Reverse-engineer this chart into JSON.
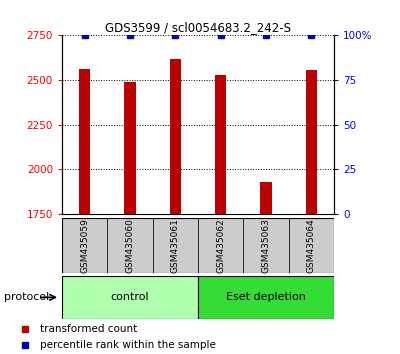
{
  "title": "GDS3599 / scl0054683.2_242-S",
  "samples": [
    "GSM435059",
    "GSM435060",
    "GSM435061",
    "GSM435062",
    "GSM435063",
    "GSM435064"
  ],
  "red_values": [
    2560,
    2490,
    2620,
    2530,
    1930,
    2555
  ],
  "blue_values": [
    100,
    100,
    100,
    100,
    100,
    100
  ],
  "ylim_left": [
    1750,
    2750
  ],
  "ylim_right": [
    0,
    100
  ],
  "yticks_left": [
    1750,
    2000,
    2250,
    2500,
    2750
  ],
  "yticks_right": [
    0,
    25,
    50,
    75,
    100
  ],
  "ytick_labels_right": [
    "0",
    "25",
    "50",
    "75",
    "100%"
  ],
  "groups": [
    {
      "label": "control",
      "start": 0,
      "end": 3,
      "color": "#AFFFAF"
    },
    {
      "label": "Eset depletion",
      "start": 3,
      "end": 6,
      "color": "#33DD33"
    }
  ],
  "red_color": "#BB0000",
  "blue_color": "#0000BB",
  "bar_width": 0.25,
  "protocol_label": "protocol",
  "legend_red": "transformed count",
  "legend_blue": "percentile rank within the sample",
  "sample_box_color": "#CCCCCC"
}
